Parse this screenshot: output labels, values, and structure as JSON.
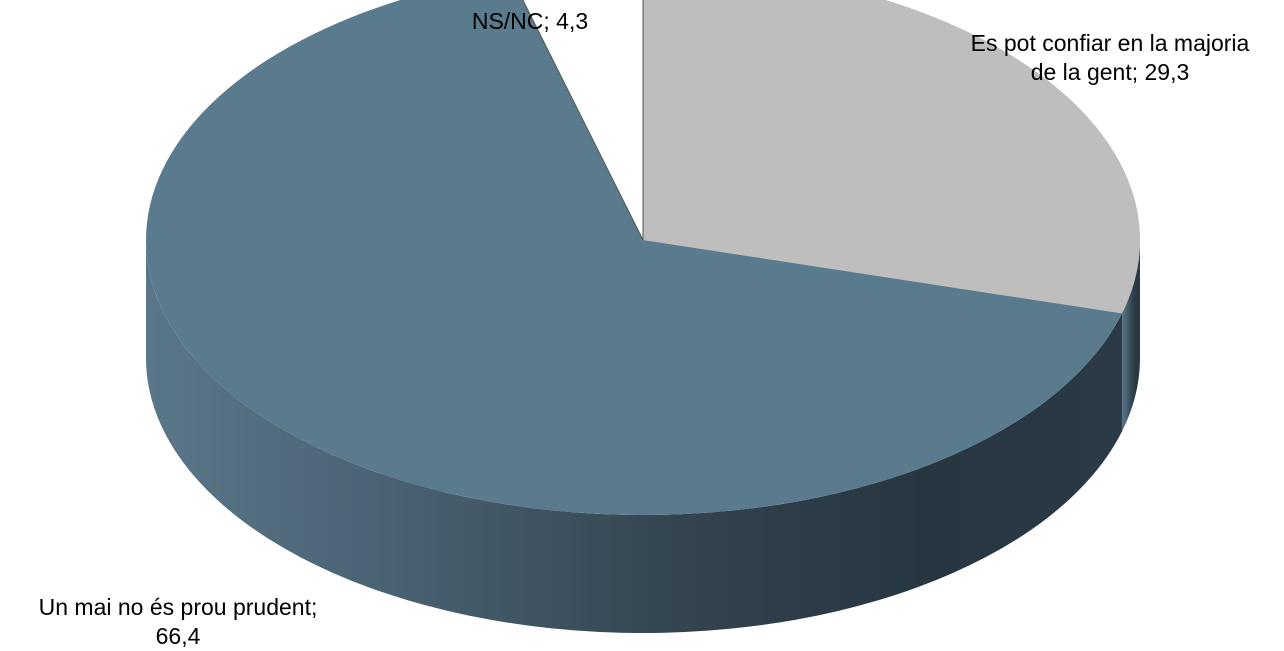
{
  "chart_data": {
    "type": "pie",
    "style": "3d",
    "title": "",
    "slices": [
      {
        "label_lines": [
          "Es pot confiar en la majoria",
          "de la gent; 29,3"
        ],
        "value": 29.3,
        "color": "#bebebe"
      },
      {
        "label_lines": [
          "Un mai no és prou prudent;",
          "66,4"
        ],
        "value": 66.4,
        "color": "#5a7a8e"
      },
      {
        "label_lines": [
          "NS/NC; 4,3"
        ],
        "value": 4.3,
        "color": "#ffffff"
      }
    ]
  }
}
